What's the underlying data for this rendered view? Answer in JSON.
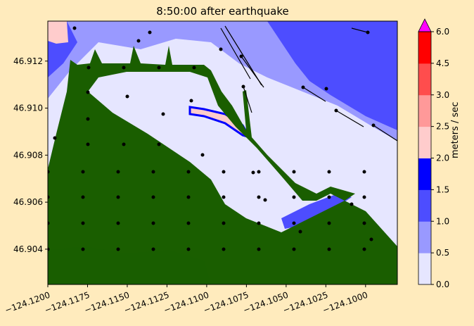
{
  "title": "8:50:00 after earthquake",
  "chart_data": {
    "type": "heatmap",
    "title": "8:50:00 after earthquake",
    "xlim": [
      -124.12,
      -124.098
    ],
    "ylim": [
      46.9025,
      46.9137
    ],
    "x_ticks": [
      "−124.1200",
      "−124.1175",
      "−124.1150",
      "−124.1125",
      "−124.1100",
      "−124.1075",
      "−124.1050",
      "−124.1025",
      "−124.1000"
    ],
    "x_tick_values": [
      -124.12,
      -124.1175,
      -124.115,
      -124.1125,
      -124.11,
      -124.1075,
      -124.105,
      -124.1025,
      -124.1
    ],
    "y_ticks": [
      "46.904",
      "46.906",
      "46.908",
      "46.910",
      "46.912"
    ],
    "y_tick_values": [
      46.904,
      46.906,
      46.908,
      46.91,
      46.912
    ],
    "colorbar": {
      "label": "meters / sec",
      "bounds": [
        0.0,
        0.5,
        1.0,
        1.5,
        2.0,
        2.5,
        3.0,
        4.5,
        6.0
      ],
      "tick_labels": [
        "0.0",
        "0.5",
        "1.0",
        "1.5",
        "2.0",
        "2.5",
        "3.0",
        "4.5",
        "6.0"
      ],
      "colors": [
        "#e6e6ff",
        "#9999ff",
        "#4d4dff",
        "#0000ff",
        "#ffcccc",
        "#ff9999",
        "#ff4d4d",
        "#ff0000"
      ],
      "over_color": "#ff00ff",
      "extend": "max"
    },
    "land_color": "#1a5e00"
  }
}
